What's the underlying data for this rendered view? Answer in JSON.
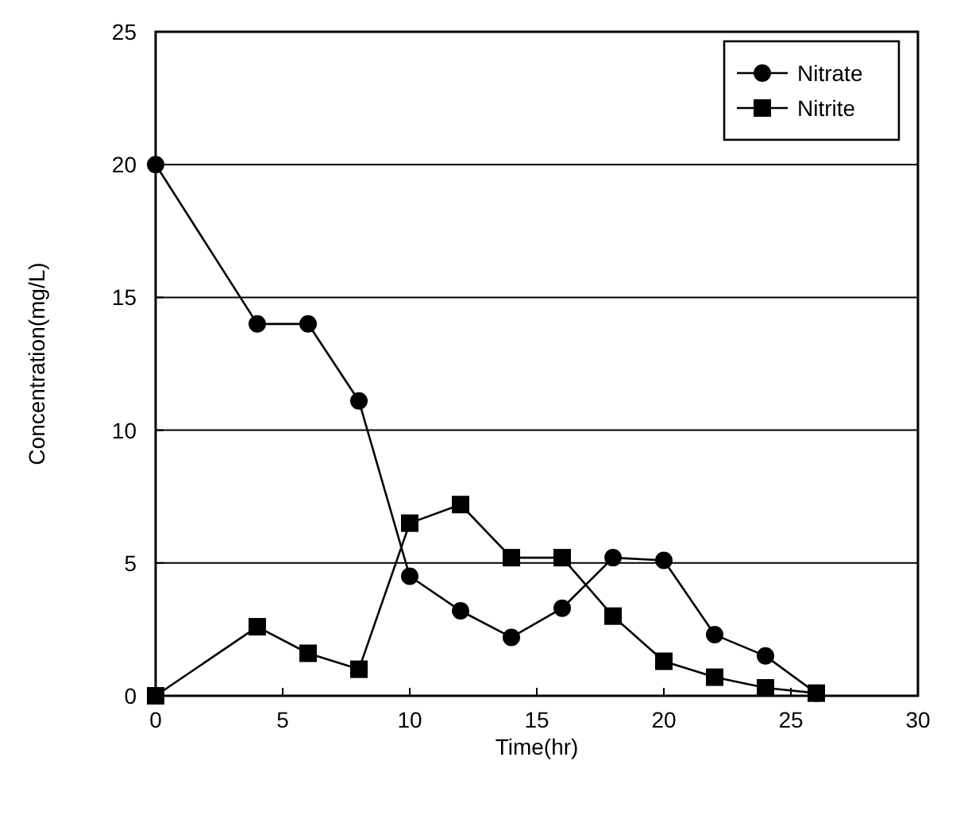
{
  "chart_data": {
    "type": "line",
    "xlabel": "Time(hr)",
    "ylabel": "Concentration(mg/L)",
    "xlim": [
      0,
      30
    ],
    "xticks": [
      0,
      5,
      10,
      15,
      20,
      25,
      30
    ],
    "ylim": [
      0,
      25
    ],
    "yticks": [
      0,
      5,
      10,
      15,
      20,
      25
    ],
    "grid": "y",
    "legend": "top right",
    "series": [
      {
        "name": "Nitrate",
        "color": "#000000",
        "marker": "circle",
        "x": [
          0,
          4,
          6,
          8,
          10,
          12,
          14,
          16,
          18,
          20,
          22,
          24,
          26
        ],
        "values": [
          20,
          14,
          14,
          11.1,
          4.5,
          3.2,
          2.2,
          3.3,
          5.2,
          5.1,
          2.3,
          1.5,
          0.1
        ]
      },
      {
        "name": "Nitrite",
        "color": "#000000",
        "marker": "square",
        "x": [
          0,
          4,
          6,
          8,
          10,
          12,
          14,
          16,
          18,
          20,
          22,
          24,
          26
        ],
        "values": [
          0,
          2.6,
          1.6,
          1.0,
          6.5,
          7.2,
          5.2,
          5.2,
          3.0,
          1.3,
          0.7,
          0.3,
          0.1
        ]
      }
    ]
  }
}
